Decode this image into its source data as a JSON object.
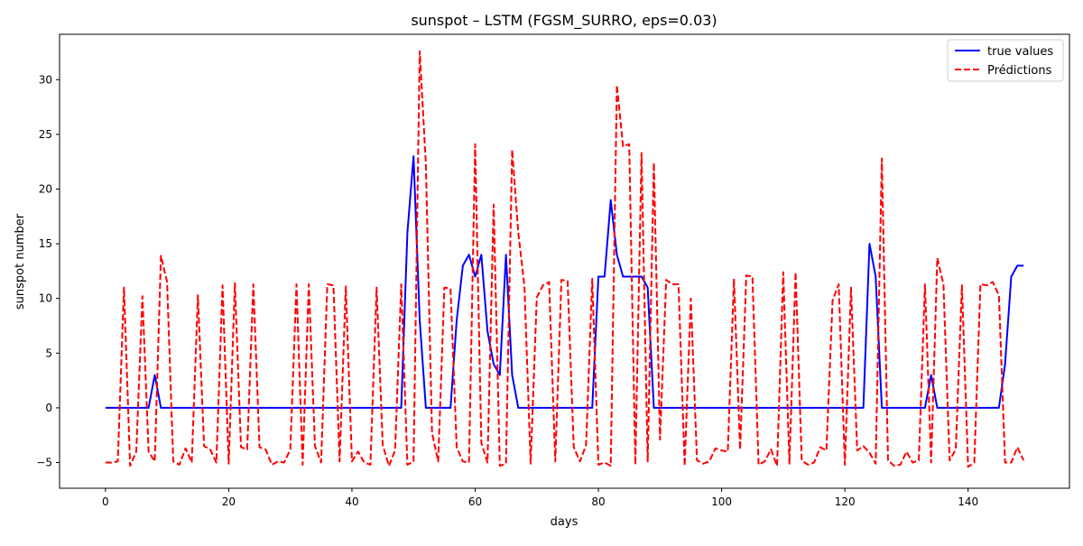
{
  "chart_data": {
    "type": "line",
    "title": "sunspot – LSTM (FGSM_SURRO, eps=0.03)",
    "xlabel": "days",
    "ylabel": "sunspot number",
    "xlim": [
      -7.45,
      156.45
    ],
    "ylim": [
      -7.35,
      34.15
    ],
    "xticks": [
      0,
      20,
      40,
      60,
      80,
      100,
      120,
      140
    ],
    "yticks": [
      -5,
      0,
      5,
      10,
      15,
      20,
      25,
      30
    ],
    "grid": false,
    "legend_position": "top-right",
    "series": [
      {
        "name": "true values",
        "color": "#0000ff",
        "style": "solid",
        "values": [
          0,
          0,
          0,
          0,
          0,
          0,
          0,
          0,
          3,
          0,
          0,
          0,
          0,
          0,
          0,
          0,
          0,
          0,
          0,
          0,
          0,
          0,
          0,
          0,
          0,
          0,
          0,
          0,
          0,
          0,
          0,
          0,
          0,
          0,
          0,
          0,
          0,
          0,
          0,
          0,
          0,
          0,
          0,
          0,
          0,
          0,
          0,
          0,
          0,
          16,
          23,
          8,
          0,
          0,
          0,
          0,
          0,
          8,
          13,
          14,
          12,
          14,
          7,
          4,
          3,
          14,
          3,
          0,
          0,
          0,
          0,
          0,
          0,
          0,
          0,
          0,
          0,
          0,
          0,
          0,
          12,
          12,
          19,
          14,
          12,
          12,
          12,
          12,
          11,
          0,
          0,
          0,
          0,
          0,
          0,
          0,
          0,
          0,
          0,
          0,
          0,
          0,
          0,
          0,
          0,
          0,
          0,
          0,
          0,
          0,
          0,
          0,
          0,
          0,
          0,
          0,
          0,
          0,
          0,
          0,
          0,
          0,
          0,
          0,
          15,
          12,
          0,
          0,
          0,
          0,
          0,
          0,
          0,
          0,
          3,
          0,
          0,
          0,
          0,
          0,
          0,
          0,
          0,
          0,
          0,
          0,
          4,
          12,
          13,
          13
        ]
      },
      {
        "name": "Prédictions",
        "color": "#ff0000",
        "style": "dashed",
        "values": [
          -5,
          -5,
          -4.9,
          11,
          -5.3,
          -4,
          10.2,
          -4,
          -4.9,
          13.9,
          11.5,
          -4.9,
          -5.2,
          -3.7,
          -5,
          10.3,
          -3.5,
          -3.8,
          -5,
          11.2,
          -5.1,
          11.4,
          -3.6,
          -3.8,
          11.3,
          -3.6,
          -3.8,
          -5.2,
          -4.9,
          -5,
          -3.8,
          11.3,
          -5.2,
          11.3,
          -3.5,
          -5,
          11.3,
          11.2,
          -4.9,
          11.1,
          -4.9,
          -4,
          -5,
          -5.2,
          11,
          -3.4,
          -5.3,
          -3.9,
          11.3,
          -5.2,
          -4.9,
          32.6,
          22.3,
          -2.3,
          -4.9,
          11,
          10.9,
          -3.6,
          -4.9,
          -5,
          24.1,
          -3.2,
          -5,
          18.6,
          -5.3,
          -5.1,
          23.6,
          16,
          11.1,
          -5.1,
          10.1,
          11.2,
          11.5,
          -4.9,
          11.7,
          11.6,
          -3.6,
          -4.9,
          -3.4,
          11.8,
          -5.2,
          -5,
          -5.3,
          29.5,
          23.9,
          24.1,
          -5.2,
          23.3,
          -4.9,
          22.4,
          -2.9,
          11.7,
          11.3,
          11.3,
          -5.3,
          10,
          -4.8,
          -5.1,
          -4.9,
          -3.7,
          -3.9,
          -4,
          11.8,
          -3.8,
          12.1,
          12,
          -5.2,
          -4.9,
          -3.8,
          -5.3,
          12.4,
          -5.1,
          12.4,
          -4.8,
          -5.2,
          -5,
          -3.6,
          -3.9,
          9.8,
          11.3,
          -5.2,
          11,
          -3.9,
          -3.5,
          -4.1,
          -5.1,
          22.8,
          -4.8,
          -5.3,
          -5.2,
          -4,
          -5,
          -4.8,
          11.3,
          -5,
          13.7,
          11.3,
          -4.8,
          -3.8,
          11.2,
          -5.4,
          -5,
          11.3,
          11.2,
          11.5,
          10.3,
          -5,
          -5,
          -3.6,
          -4.8
        ]
      }
    ]
  }
}
